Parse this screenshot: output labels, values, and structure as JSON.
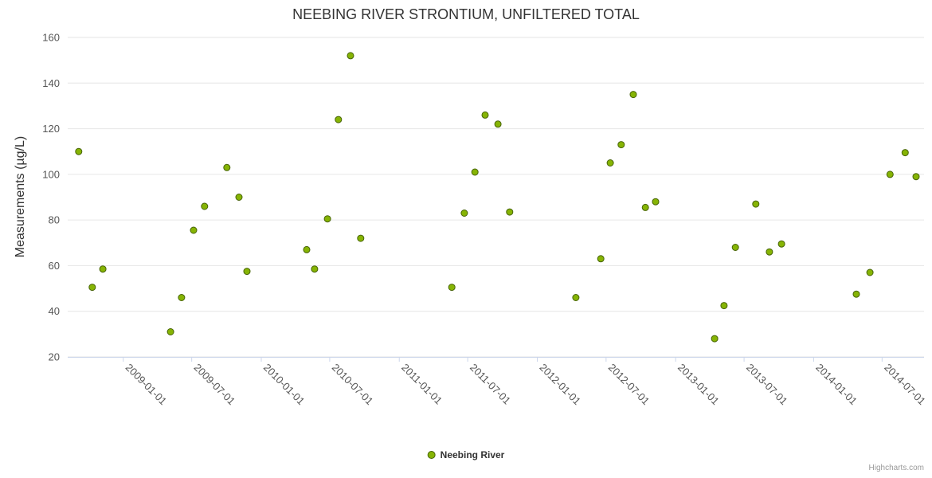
{
  "chart_data": {
    "type": "scatter",
    "title": "NEEBING RIVER STRONTIUM, UNFILTERED TOTAL",
    "xlabel": "",
    "ylabel": "Measurements (µg/L)",
    "ylim": [
      20,
      160
    ],
    "xlim": [
      "2008-08-07",
      "2014-10-20"
    ],
    "y_ticks": [
      20,
      40,
      60,
      80,
      100,
      120,
      140,
      160
    ],
    "x_ticks": [
      "2009-01-01",
      "2009-07-01",
      "2010-01-01",
      "2010-07-01",
      "2011-01-01",
      "2011-07-01",
      "2012-01-01",
      "2012-07-01",
      "2013-01-01",
      "2013-07-01",
      "2014-01-01",
      "2014-07-01"
    ],
    "grid": "horizontal-only",
    "legend_position": "bottom-center",
    "colors": {
      "gridline": "#e6e6e6",
      "axis_line": "#ccd6eb",
      "tick_label": "#555555",
      "title": "#333333"
    },
    "series": [
      {
        "name": "Neebing River",
        "color": "#86b404",
        "marker_stroke": "#466305",
        "points": [
          [
            "2008-09-05",
            110
          ],
          [
            "2008-10-11",
            50.5
          ],
          [
            "2008-11-08",
            58.5
          ],
          [
            "2009-05-06",
            31
          ],
          [
            "2009-06-04",
            46
          ],
          [
            "2009-07-06",
            75.5
          ],
          [
            "2009-08-04",
            86
          ],
          [
            "2009-10-02",
            103
          ],
          [
            "2009-11-03",
            90
          ],
          [
            "2009-11-24",
            57.5
          ],
          [
            "2010-05-01",
            67
          ],
          [
            "2010-05-22",
            58.5
          ],
          [
            "2010-06-25",
            80.5
          ],
          [
            "2010-07-24",
            124
          ],
          [
            "2010-08-25",
            152
          ],
          [
            "2010-09-21",
            72
          ],
          [
            "2011-05-20",
            50.5
          ],
          [
            "2011-06-22",
            83
          ],
          [
            "2011-07-20",
            101
          ],
          [
            "2011-08-16",
            126
          ],
          [
            "2011-09-19",
            122
          ],
          [
            "2011-10-20",
            83.5
          ],
          [
            "2012-04-12",
            46
          ],
          [
            "2012-06-17",
            63
          ],
          [
            "2012-07-12",
            105
          ],
          [
            "2012-08-10",
            113
          ],
          [
            "2012-09-11",
            135
          ],
          [
            "2012-10-13",
            85.5
          ],
          [
            "2012-11-09",
            88
          ],
          [
            "2013-04-14",
            28
          ],
          [
            "2013-05-09",
            42.5
          ],
          [
            "2013-06-08",
            68
          ],
          [
            "2013-08-01",
            87
          ],
          [
            "2013-09-06",
            66
          ],
          [
            "2013-10-08",
            69.5
          ],
          [
            "2014-04-24",
            47.5
          ],
          [
            "2014-05-30",
            57
          ],
          [
            "2014-07-22",
            100
          ],
          [
            "2014-08-31",
            109.5
          ],
          [
            "2014-09-29",
            99
          ]
        ]
      }
    ]
  },
  "credit": "Highcharts.com"
}
